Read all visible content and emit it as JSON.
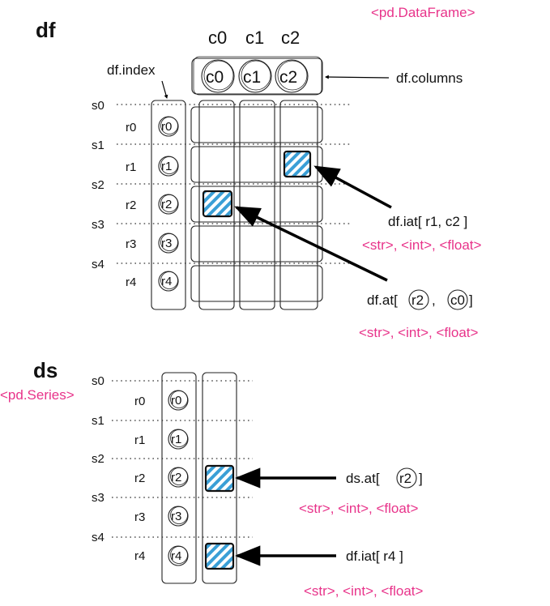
{
  "df": {
    "title": "df",
    "type_label": "<pd.DataFrame>",
    "index_label": "df.index",
    "columns_label": "df.columns",
    "column_headers": [
      "c0",
      "c1",
      "c2"
    ],
    "column_circles": [
      "c0",
      "c1",
      "c2"
    ],
    "slice_ticks": [
      "s0",
      "s1",
      "s2",
      "s3",
      "s4"
    ],
    "row_labels": [
      "r0",
      "r1",
      "r2",
      "r3",
      "r4"
    ],
    "row_circles": [
      "r0",
      "r1",
      "r2",
      "r3",
      "r4"
    ],
    "iat": {
      "prefix": "df.iat[ r1, c2 ]",
      "types": "<str>, <int>, <float>"
    },
    "at": {
      "prefix": "df.at[",
      "arg1": "r2",
      "sep": ",",
      "arg2": "c0",
      "suffix": "]",
      "types": "<str>, <int>, <float>"
    }
  },
  "ds": {
    "title": "ds",
    "type_label": "<pd.Series>",
    "slice_ticks": [
      "s0",
      "s1",
      "s2",
      "s3",
      "s4"
    ],
    "row_labels": [
      "r0",
      "r1",
      "r2",
      "r3",
      "r4"
    ],
    "row_circles": [
      "r0",
      "r1",
      "r2",
      "r3",
      "r4"
    ],
    "at": {
      "prefix": "ds.at[",
      "arg": "r2",
      "suffix": "]",
      "types": "<str>, <int>, <float>"
    },
    "iat": {
      "prefix": "df.iat[ r4 ]",
      "types": "<str>, <int>, <float>"
    }
  },
  "colors": {
    "accent_pink": "#e8338a",
    "hatch_blue": "#3a9fd6"
  }
}
